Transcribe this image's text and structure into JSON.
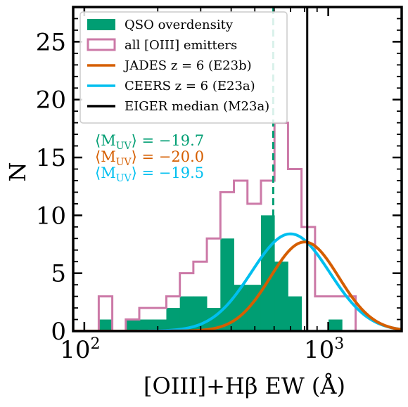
{
  "chart_data": {
    "type": "histogram",
    "xlabel": "[OIII]+Hβ EW (Å)",
    "ylabel": "N",
    "xscale": "log",
    "xlim": [
      90,
      2000
    ],
    "ylim": [
      0,
      28
    ],
    "x_ticks": [
      {
        "value": 100,
        "base": "10",
        "exp": "2"
      },
      {
        "value": 1000,
        "base": "10",
        "exp": "3"
      }
    ],
    "y_ticks": [
      0,
      5,
      10,
      15,
      20,
      25
    ],
    "bins": [
      114.6,
      130.2,
      147.9,
      168.0,
      190.9,
      216.9,
      246.4,
      279.9,
      318.0,
      361.3,
      410.5,
      466.4,
      529.9,
      602.0,
      684.0,
      777.1,
      882.9,
      1003.1,
      1139.7,
      1294.9,
      1471.2
    ],
    "colors": {
      "qso": "#009e73",
      "all": "#cc79a7",
      "jades": "#d55e00",
      "ceers": "#00bfef",
      "eiger": "#000000",
      "median_line": "#009e73"
    },
    "series": [
      {
        "name": "QSO overdensity",
        "kind": "filled_histogram",
        "counts": [
          1,
          0,
          1,
          1,
          1,
          2,
          3,
          3,
          2,
          8,
          4,
          4,
          10,
          6,
          3,
          0,
          0,
          1,
          0,
          0
        ]
      },
      {
        "name": "all [OIII] emitters",
        "kind": "step_histogram",
        "counts": [
          3,
          0,
          1,
          2,
          2,
          3,
          5,
          6,
          8,
          12,
          13,
          11,
          13,
          18,
          14,
          9,
          3,
          3,
          3,
          0
        ]
      },
      {
        "name": "JADES z = 6 (E23b)",
        "kind": "gaussian_curve",
        "center": 800,
        "peak": 7.7,
        "sigma_log10": 0.14
      },
      {
        "name": "CEERS z = 6 (E23a)",
        "kind": "gaussian_curve",
        "center": 700,
        "peak": 8.4,
        "sigma_log10": 0.16
      },
      {
        "name": "EIGER median (M23a)",
        "kind": "vline",
        "x": 820
      }
    ],
    "qso_median_line_x": 595,
    "annotations": [
      {
        "prefix": "⟨M",
        "sub": "UV",
        "suffix": "⟩ = −19.7",
        "color": "#009e73"
      },
      {
        "prefix": "⟨M",
        "sub": "UV",
        "suffix": "⟩ = −20.0",
        "color": "#d55e00"
      },
      {
        "prefix": "⟨M",
        "sub": "UV",
        "suffix": "⟩ = −19.5",
        "color": "#00bfef"
      }
    ],
    "legend_position": "top-left"
  }
}
